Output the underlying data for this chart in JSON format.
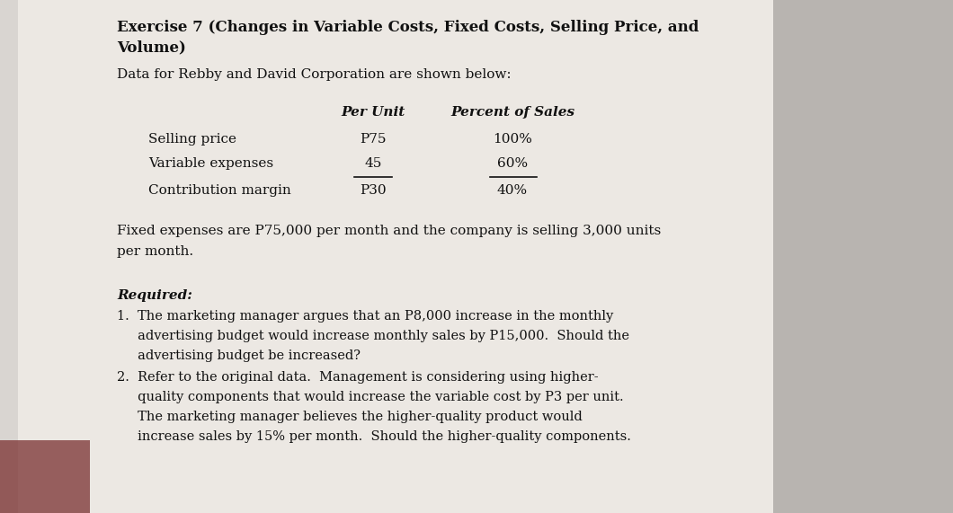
{
  "bg_left_color": "#d8d4d0",
  "bg_right_color": "#c8c4c0",
  "paper_color": "#f0ede8",
  "text_color": "#111111",
  "title_line1": "Exercise 7 (Changes in Variable Costs, Fixed Costs, Selling Price, and",
  "title_line2": "Volume)",
  "intro": "Data for Rebby and David Corporation are shown below:",
  "col_header1": "Per Unit",
  "col_header2": "Percent of Sales",
  "row1_label": "Selling price",
  "row1_val1": "P75",
  "row1_val2": "100%",
  "row2_label": "Variable expenses",
  "row2_val1": "45",
  "row2_val2": "60%",
  "row3_label": "Contribution margin",
  "row3_val1": "P30",
  "row3_val2": "40%",
  "fixed_line1": "Fixed expenses are P75,000 per month and the company is selling 3,000 units",
  "fixed_line2": "per month.",
  "required_label": "Required:",
  "item1_line1": "1.  The marketing manager argues that an P8,000 increase in the monthly",
  "item1_line2": "     advertising budget would increase monthly sales by P15,000.  Should the",
  "item1_line3": "     advertising budget be increased?",
  "item2_line1": "2.  Refer to the original data.  Management is considering using higher-",
  "item2_line2": "     quality components that would increase the variable cost by P3 per unit.",
  "item2_line3": "     The marketing manager believes the higher-quality product would",
  "item2_line4": "     increase sales by 15% per month.  Should the higher-quality components.",
  "smudge_color": "#7a3030",
  "smudge_alpha": 0.75
}
